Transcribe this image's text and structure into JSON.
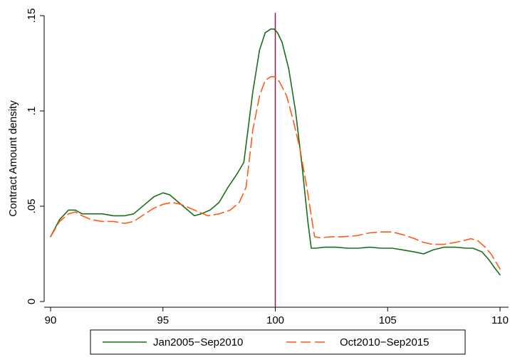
{
  "chart_data": {
    "type": "line",
    "title": "",
    "xlabel": "",
    "ylabel": "Contract Amount density",
    "xlim": [
      90,
      110
    ],
    "ylim": [
      0,
      0.15
    ],
    "xticks": [
      {
        "value": 90,
        "label": "90"
      },
      {
        "value": 95,
        "label": "95"
      },
      {
        "value": 100,
        "label": "100"
      },
      {
        "value": 105,
        "label": "105"
      },
      {
        "value": 110,
        "label": "110"
      }
    ],
    "yticks": [
      {
        "value": 0,
        "label": "0"
      },
      {
        "value": 0.05,
        "label": ".05"
      },
      {
        "value": 0.1,
        "label": ".1"
      },
      {
        "value": 0.15,
        "label": ".15"
      }
    ],
    "grid": false,
    "legend_position": "bottom",
    "reference_line": {
      "x": 100,
      "color": "#a0144a"
    },
    "series": [
      {
        "name": "Jan2005−Sep2010",
        "color": "#1a6e1a",
        "style": "solid",
        "x": [
          90.0,
          90.4,
          90.8,
          91.1,
          91.4,
          91.8,
          92.3,
          92.8,
          93.3,
          93.7,
          94.2,
          94.6,
          95.0,
          95.3,
          95.7,
          96.1,
          96.4,
          96.7,
          97.1,
          97.5,
          97.9,
          98.3,
          98.6,
          99.0,
          99.3,
          99.55,
          99.8,
          99.95,
          100.1,
          100.3,
          100.6,
          100.9,
          101.2,
          101.45,
          101.6,
          101.8,
          102.2,
          102.7,
          103.2,
          103.7,
          104.2,
          104.7,
          105.2,
          105.7,
          106.2,
          106.6,
          107.0,
          107.5,
          108.0,
          108.5,
          108.8,
          109.2,
          109.5,
          109.8,
          110.0
        ],
        "y": [
          0.034,
          0.043,
          0.048,
          0.048,
          0.046,
          0.046,
          0.046,
          0.045,
          0.045,
          0.046,
          0.051,
          0.055,
          0.057,
          0.056,
          0.052,
          0.048,
          0.045,
          0.046,
          0.048,
          0.052,
          0.06,
          0.067,
          0.073,
          0.11,
          0.132,
          0.141,
          0.143,
          0.143,
          0.141,
          0.136,
          0.122,
          0.1,
          0.07,
          0.042,
          0.028,
          0.028,
          0.0285,
          0.0285,
          0.028,
          0.028,
          0.0285,
          0.028,
          0.028,
          0.027,
          0.026,
          0.025,
          0.027,
          0.0285,
          0.0285,
          0.028,
          0.028,
          0.026,
          0.022,
          0.017,
          0.014
        ]
      },
      {
        "name": "Oct2010−Sep2015",
        "color": "#ff5a14",
        "style": "dashed",
        "x": [
          90.0,
          90.4,
          90.8,
          91.1,
          91.4,
          91.8,
          92.3,
          92.8,
          93.3,
          93.7,
          94.2,
          94.6,
          95.0,
          95.4,
          95.8,
          96.2,
          96.6,
          97.0,
          97.5,
          98.0,
          98.4,
          98.7,
          99.0,
          99.3,
          99.55,
          99.8,
          100.0,
          100.2,
          100.5,
          100.8,
          101.1,
          101.4,
          101.6,
          101.75,
          102.0,
          102.5,
          103.0,
          103.6,
          104.2,
          104.7,
          105.2,
          105.7,
          106.2,
          106.6,
          107.0,
          107.5,
          108.0,
          108.4,
          108.7,
          109.0,
          109.3,
          109.6,
          110.0
        ],
        "y": [
          0.034,
          0.042,
          0.046,
          0.047,
          0.045,
          0.043,
          0.042,
          0.042,
          0.041,
          0.042,
          0.046,
          0.049,
          0.051,
          0.052,
          0.051,
          0.049,
          0.047,
          0.045,
          0.046,
          0.048,
          0.052,
          0.06,
          0.09,
          0.108,
          0.116,
          0.118,
          0.118,
          0.115,
          0.108,
          0.095,
          0.08,
          0.06,
          0.045,
          0.034,
          0.0335,
          0.034,
          0.034,
          0.0345,
          0.036,
          0.0365,
          0.0365,
          0.035,
          0.033,
          0.031,
          0.03,
          0.03,
          0.031,
          0.032,
          0.033,
          0.032,
          0.029,
          0.025,
          0.017
        ]
      }
    ]
  }
}
